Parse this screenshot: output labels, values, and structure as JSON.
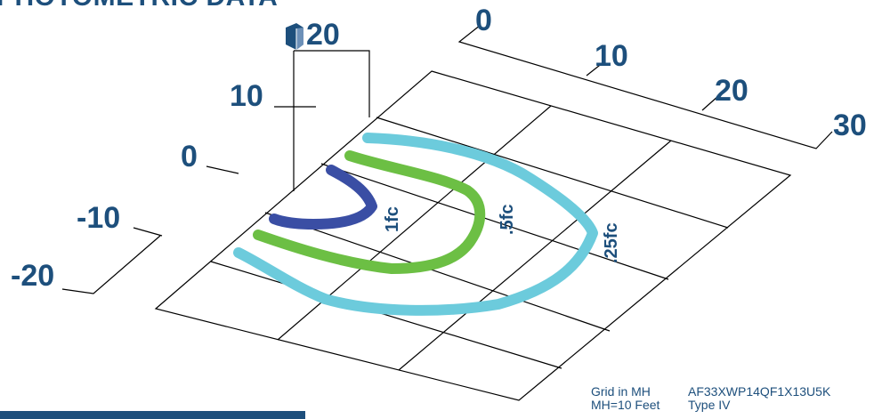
{
  "header": {
    "title": "PHOTOMETRIC DATA"
  },
  "axes": {
    "vertical_ticks": [
      "20",
      "10",
      "0",
      "-10",
      "-20"
    ],
    "depth_ticks": [
      "0",
      "10",
      "20",
      "30"
    ]
  },
  "contours": [
    {
      "label": "1fc",
      "color": "#3a4ea4"
    },
    {
      "label": ".5fc",
      "color": "#6cbf44"
    },
    {
      "label": ".25fc",
      "color": "#6ccbdc"
    }
  ],
  "info": {
    "grid_label": "Grid in MH",
    "mh_label": "MH=10 Feet",
    "model": "AF33XWP14QF1X13U5K",
    "type": "Type IV"
  },
  "colors": {
    "text": "#1d4f7c",
    "grid": "#000000"
  },
  "icons": {
    "fixture": "luminaire-icon"
  }
}
